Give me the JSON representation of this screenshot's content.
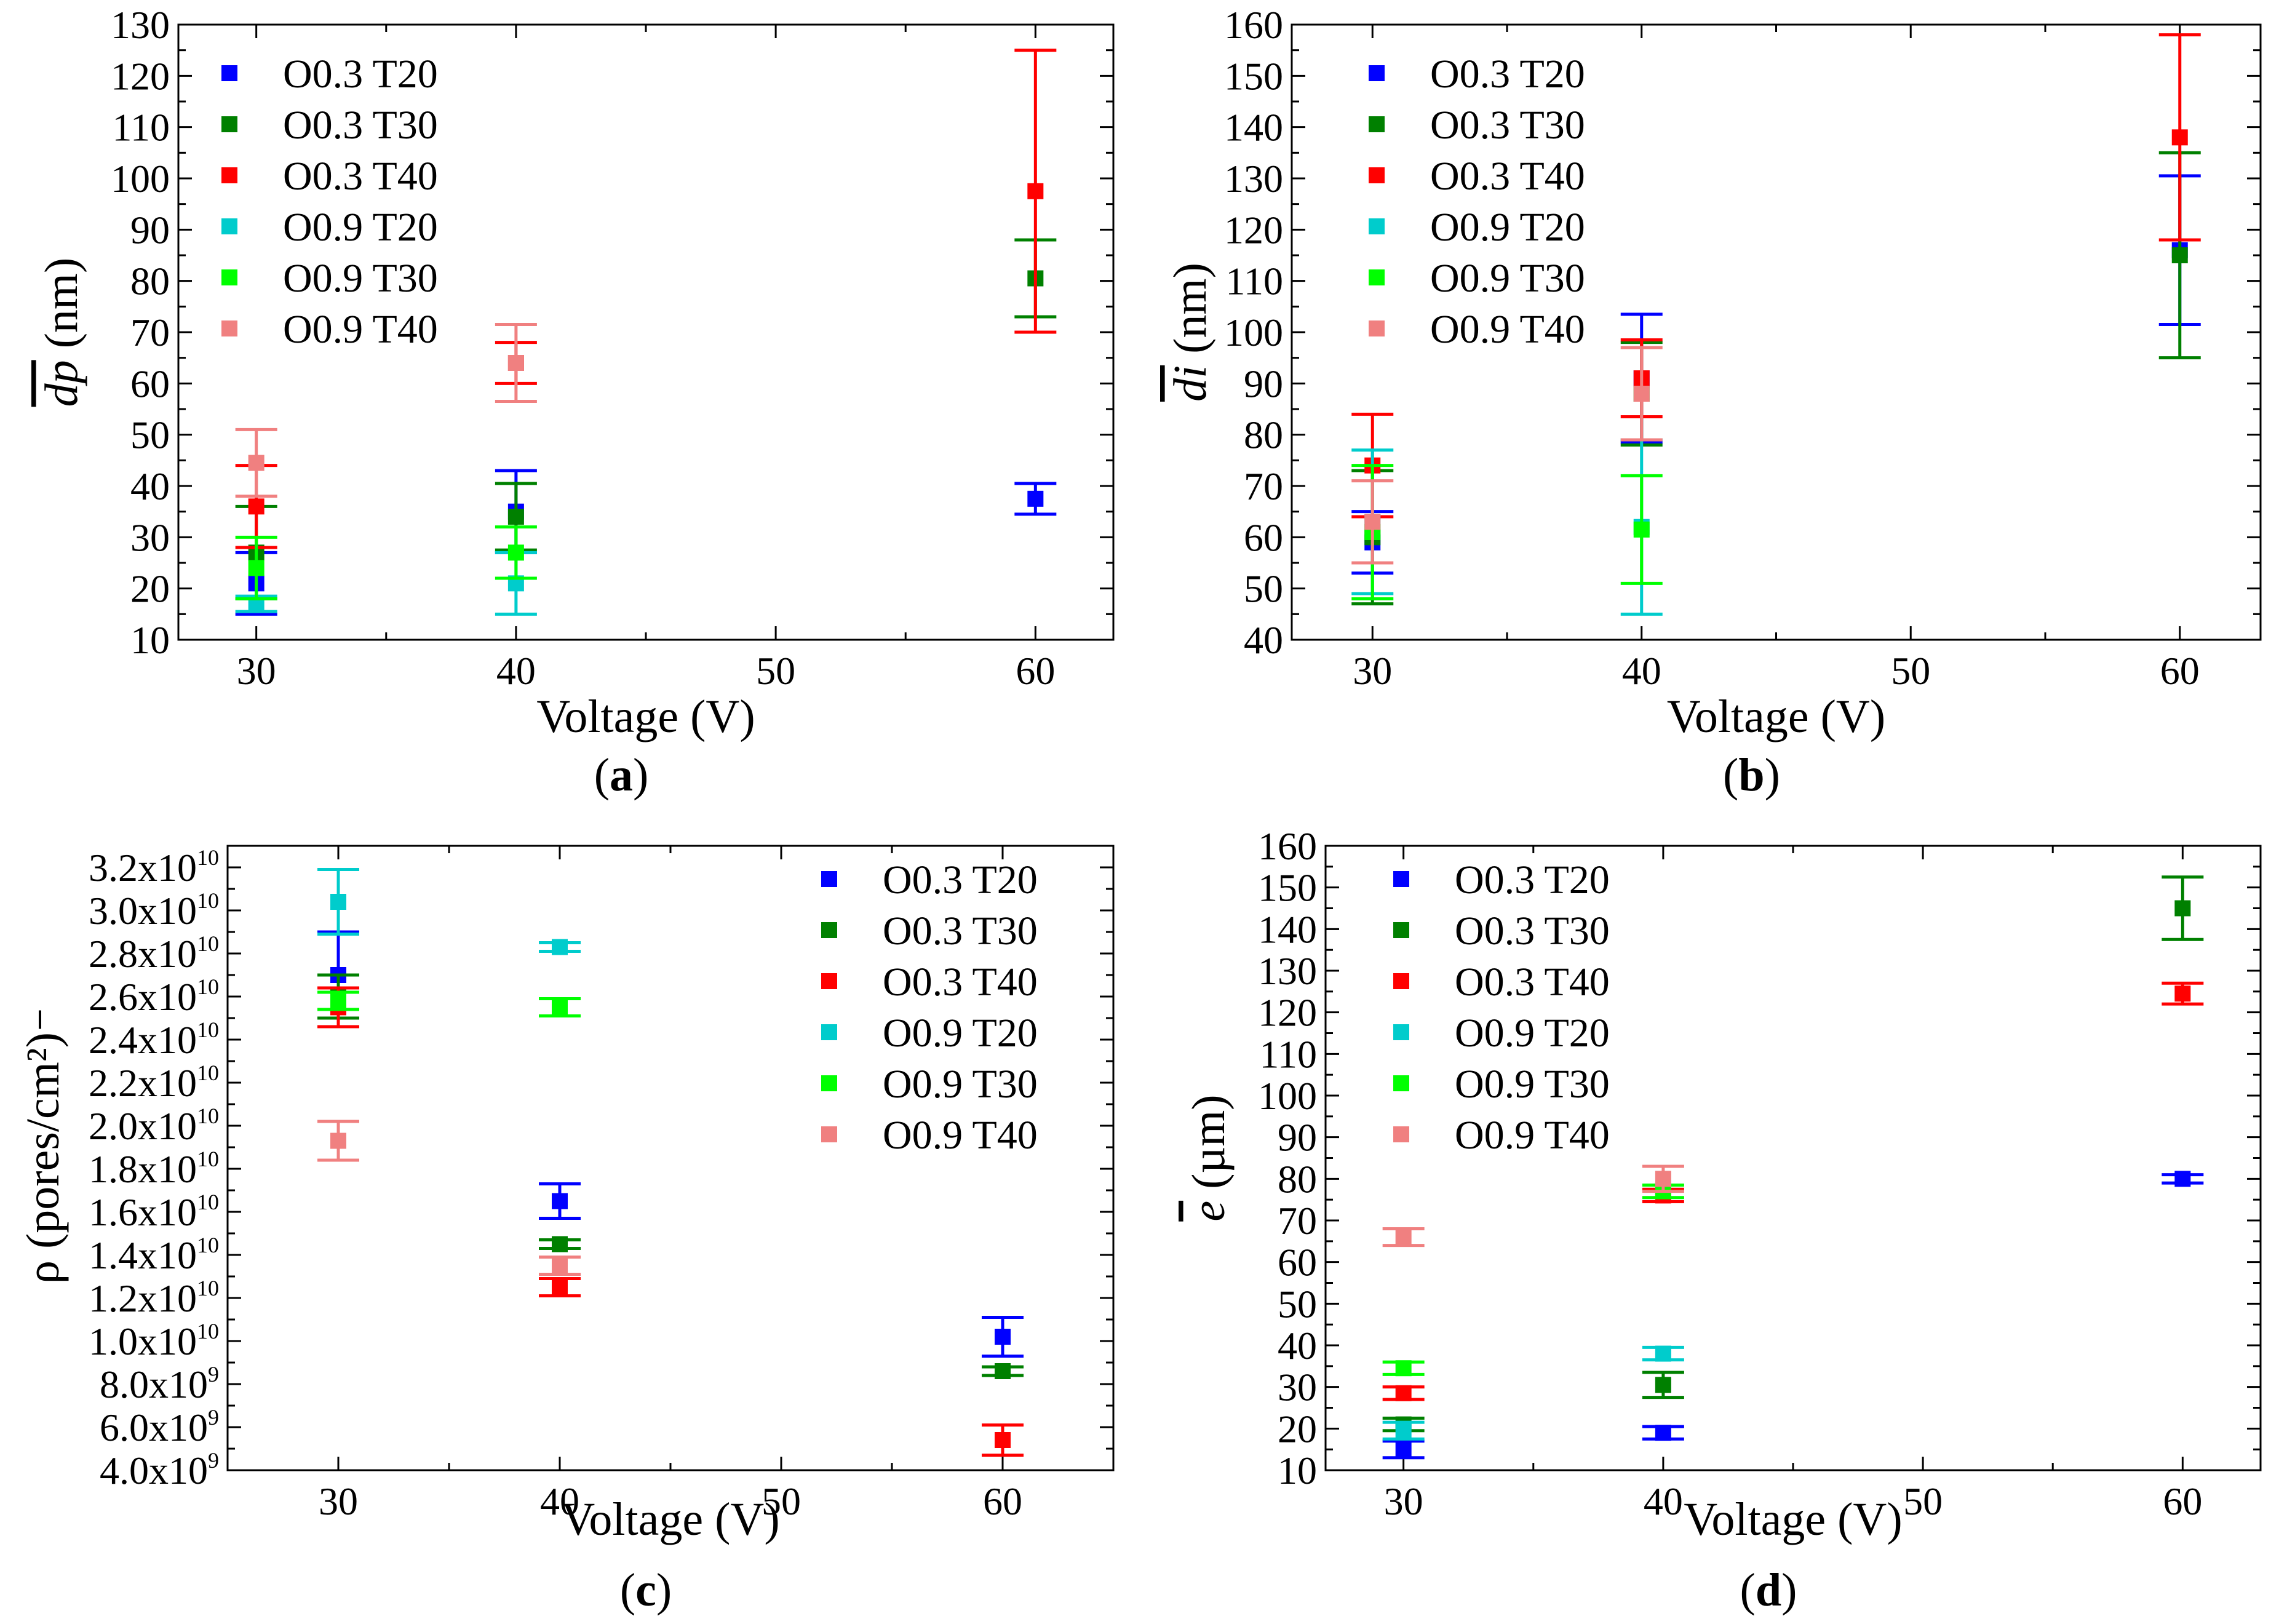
{
  "figure": {
    "panels": [
      "a",
      "b",
      "c",
      "d"
    ]
  },
  "chart_data": [
    {
      "id": "a",
      "type": "scatter",
      "caption_letter": "a",
      "xlabel": "Voltage (V)",
      "ylabel_symbol": "dp",
      "ylabel_unit": " (nm)",
      "xlim": [
        27,
        63
      ],
      "ylim": [
        10,
        130
      ],
      "xticks": [
        30,
        40,
        50,
        60
      ],
      "yticks": [
        10,
        20,
        30,
        40,
        50,
        60,
        70,
        80,
        90,
        100,
        110,
        120,
        130
      ],
      "legend_position": "top-left",
      "series": [
        {
          "name": "O0.3 T20",
          "color": "#0000ff",
          "points": [
            {
              "x": 30,
              "y": 21,
              "err": 6
            },
            {
              "x": 40,
              "y": 35,
              "err": 8
            },
            {
              "x": 60,
              "y": 37.5,
              "err": 3
            }
          ]
        },
        {
          "name": "O0.3 T30",
          "color": "#008000",
          "points": [
            {
              "x": 30,
              "y": 27,
              "err": 9
            },
            {
              "x": 40,
              "y": 34,
              "err": 6.5
            },
            {
              "x": 60,
              "y": 80.5,
              "err": 7.5
            }
          ]
        },
        {
          "name": "O0.3 T40",
          "color": "#ff0000",
          "points": [
            {
              "x": 30,
              "y": 36,
              "err": 8
            },
            {
              "x": 40,
              "y": 64,
              "err": 4
            },
            {
              "x": 60,
              "y": 97.5,
              "err": 27.5
            }
          ]
        },
        {
          "name": "O0.9 T20",
          "color": "#00cccc",
          "points": [
            {
              "x": 30,
              "y": 17,
              "err": 1.5
            },
            {
              "x": 40,
              "y": 21,
              "err": 6
            }
          ]
        },
        {
          "name": "O0.9 T30",
          "color": "#00ff00",
          "points": [
            {
              "x": 30,
              "y": 24,
              "err": 6
            },
            {
              "x": 40,
              "y": 27,
              "err": 5
            }
          ]
        },
        {
          "name": "O0.9 T40",
          "color": "#f08080",
          "points": [
            {
              "x": 30,
              "y": 44.5,
              "err": 6.5
            },
            {
              "x": 40,
              "y": 64,
              "err": 7.5
            }
          ]
        }
      ]
    },
    {
      "id": "b",
      "type": "scatter",
      "caption_letter": "b",
      "xlabel": "Voltage (V)",
      "ylabel_symbol": "di",
      "ylabel_unit": " (nm)",
      "xlim": [
        27,
        63
      ],
      "ylim": [
        40,
        160
      ],
      "xticks": [
        30,
        40,
        50,
        60
      ],
      "yticks": [
        40,
        50,
        60,
        70,
        80,
        90,
        100,
        110,
        120,
        130,
        140,
        150,
        160
      ],
      "legend_position": "top-left",
      "series": [
        {
          "name": "O0.3 T20",
          "color": "#0000ff",
          "points": [
            {
              "x": 30,
              "y": 59,
              "err": 6
            },
            {
              "x": 40,
              "y": 91,
              "err": 12.5
            },
            {
              "x": 60,
              "y": 116,
              "err": 14.5
            }
          ]
        },
        {
          "name": "O0.3 T30",
          "color": "#008000",
          "points": [
            {
              "x": 30,
              "y": 60,
              "err": 13
            },
            {
              "x": 40,
              "y": 88,
              "err": 10
            },
            {
              "x": 60,
              "y": 115,
              "err": 20
            }
          ]
        },
        {
          "name": "O0.3 T40",
          "color": "#ff0000",
          "points": [
            {
              "x": 30,
              "y": 74,
              "err": 10
            },
            {
              "x": 40,
              "y": 91,
              "err": 7.5
            },
            {
              "x": 60,
              "y": 138,
              "err": 20
            }
          ]
        },
        {
          "name": "O0.9 T20",
          "color": "#00cccc",
          "points": [
            {
              "x": 30,
              "y": 63,
              "err": 14
            },
            {
              "x": 40,
              "y": 62,
              "err": 17
            }
          ]
        },
        {
          "name": "O0.9 T30",
          "color": "#00ff00",
          "points": [
            {
              "x": 30,
              "y": 61,
              "err": 13
            },
            {
              "x": 40,
              "y": 61.5,
              "err": 10.5
            }
          ]
        },
        {
          "name": "O0.9 T40",
          "color": "#f08080",
          "points": [
            {
              "x": 30,
              "y": 63,
              "err": 8
            },
            {
              "x": 40,
              "y": 88,
              "err": 9
            }
          ]
        }
      ]
    },
    {
      "id": "c",
      "type": "scatter",
      "caption_letter": "c",
      "xlabel": "Voltage (V)",
      "ylabel": "ρ (pores/cm²)",
      "xlim": [
        25,
        65
      ],
      "ylim": [
        4000000000,
        33000000000
      ],
      "xticks": [
        30,
        40,
        50,
        60
      ],
      "yticks": [
        {
          "value": 4000000000,
          "mantissa": "4.0x10",
          "exp": "9"
        },
        {
          "value": 6000000000,
          "mantissa": "6.0x10",
          "exp": "9"
        },
        {
          "value": 8000000000,
          "mantissa": "8.0x10",
          "exp": "9"
        },
        {
          "value": 10000000000,
          "mantissa": "1.0x10",
          "exp": "10"
        },
        {
          "value": 12000000000,
          "mantissa": "1.2x10",
          "exp": "10"
        },
        {
          "value": 14000000000,
          "mantissa": "1.4x10",
          "exp": "10"
        },
        {
          "value": 16000000000,
          "mantissa": "1.6x10",
          "exp": "10"
        },
        {
          "value": 18000000000,
          "mantissa": "1.8x10",
          "exp": "10"
        },
        {
          "value": 20000000000,
          "mantissa": "2.0x10",
          "exp": "10"
        },
        {
          "value": 22000000000,
          "mantissa": "2.2x10",
          "exp": "10"
        },
        {
          "value": 24000000000,
          "mantissa": "2.4x10",
          "exp": "10"
        },
        {
          "value": 26000000000,
          "mantissa": "2.6x10",
          "exp": "10"
        },
        {
          "value": 28000000000,
          "mantissa": "2.8x10",
          "exp": "10"
        },
        {
          "value": 30000000000,
          "mantissa": "3.0x10",
          "exp": "10"
        },
        {
          "value": 32000000000,
          "mantissa": "3.2x10",
          "exp": "10"
        }
      ],
      "legend_position": "top-right",
      "series": [
        {
          "name": "O0.3 T20",
          "color": "#0000ff",
          "points": [
            {
              "x": 30,
              "y": 27000000000,
              "err": 2000000000
            },
            {
              "x": 40,
              "y": 16500000000,
              "err": 800000000
            },
            {
              "x": 60,
              "y": 10200000000,
              "err": 900000000
            }
          ]
        },
        {
          "name": "O0.3 T30",
          "color": "#008000",
          "points": [
            {
              "x": 30,
              "y": 26000000000,
              "err": 1000000000
            },
            {
              "x": 40,
              "y": 14500000000,
              "err": 200000000
            },
            {
              "x": 60,
              "y": 8600000000,
              "err": 200000000
            }
          ]
        },
        {
          "name": "O0.3 T40",
          "color": "#ff0000",
          "points": [
            {
              "x": 30,
              "y": 25500000000,
              "err": 900000000
            },
            {
              "x": 40,
              "y": 12500000000,
              "err": 400000000
            },
            {
              "x": 60,
              "y": 5400000000,
              "err": 700000000
            }
          ]
        },
        {
          "name": "O0.9 T20",
          "color": "#00cccc",
          "points": [
            {
              "x": 30,
              "y": 30400000000,
              "err": 1500000000
            },
            {
              "x": 40,
              "y": 28300000000,
              "err": 200000000
            }
          ]
        },
        {
          "name": "O0.9 T30",
          "color": "#00ff00",
          "points": [
            {
              "x": 30,
              "y": 25800000000,
              "err": 400000000
            },
            {
              "x": 40,
              "y": 25500000000,
              "err": 400000000
            }
          ]
        },
        {
          "name": "O0.9 T40",
          "color": "#f08080",
          "points": [
            {
              "x": 30,
              "y": 19300000000,
              "err": 900000000
            },
            {
              "x": 40,
              "y": 13500000000,
              "err": 400000000
            }
          ]
        }
      ]
    },
    {
      "id": "d",
      "type": "scatter",
      "caption_letter": "d",
      "xlabel": "Voltage (V)",
      "ylabel_symbol": "e",
      "ylabel_unit": " (µm)",
      "xlim": [
        27,
        63
      ],
      "ylim": [
        10,
        160
      ],
      "xticks": [
        30,
        40,
        50,
        60
      ],
      "yticks": [
        10,
        20,
        30,
        40,
        50,
        60,
        70,
        80,
        90,
        100,
        110,
        120,
        130,
        140,
        150,
        160
      ],
      "legend_position": "top-left",
      "series": [
        {
          "name": "O0.3 T20",
          "color": "#0000ff",
          "points": [
            {
              "x": 30,
              "y": 15,
              "err": 2
            },
            {
              "x": 40,
              "y": 19,
              "err": 1.5
            },
            {
              "x": 60,
              "y": 80,
              "err": 1
            }
          ]
        },
        {
          "name": "O0.3 T30",
          "color": "#008000",
          "points": [
            {
              "x": 30,
              "y": 21,
              "err": 1.5
            },
            {
              "x": 40,
              "y": 30.5,
              "err": 3
            },
            {
              "x": 60,
              "y": 145,
              "err": 7.5
            }
          ]
        },
        {
          "name": "O0.3 T40",
          "color": "#ff0000",
          "points": [
            {
              "x": 30,
              "y": 28.5,
              "err": 1.5
            },
            {
              "x": 40,
              "y": 76,
              "err": 1.5
            },
            {
              "x": 60,
              "y": 124.5,
              "err": 2.5
            }
          ]
        },
        {
          "name": "O0.9 T20",
          "color": "#00cccc",
          "points": [
            {
              "x": 30,
              "y": 19.5,
              "err": 2
            },
            {
              "x": 40,
              "y": 38,
              "err": 1.5
            }
          ]
        },
        {
          "name": "O0.9 T30",
          "color": "#00ff00",
          "points": [
            {
              "x": 30,
              "y": 34.5,
              "err": 1.5
            },
            {
              "x": 40,
              "y": 77,
              "err": 1.5
            }
          ]
        },
        {
          "name": "O0.9 T40",
          "color": "#f08080",
          "points": [
            {
              "x": 30,
              "y": 66,
              "err": 2
            },
            {
              "x": 40,
              "y": 80,
              "err": 3
            }
          ]
        }
      ]
    }
  ]
}
